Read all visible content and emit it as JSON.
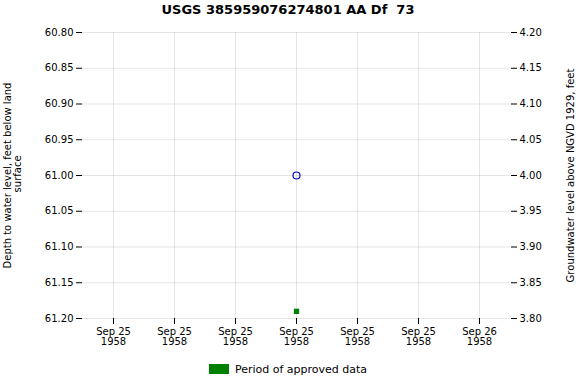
{
  "chart_data": {
    "type": "scatter",
    "title": "USGS 385959076274801 AA Df  73",
    "ylabel": "Depth to water level, feet below land\n surface",
    "y2label": "Groundwater level above NGVD 1929, feet",
    "categories": [
      "Sep 25\n1958",
      "Sep 25\n1958",
      "Sep 25\n1958",
      "Sep 25\n1958",
      "Sep 25\n1958",
      "Sep 25\n1958",
      "Sep 26\n1958"
    ],
    "series": [
      {
        "values": [
          null,
          null,
          null,
          61.0,
          null,
          null,
          null
        ],
        "color": "#0000cc",
        "marker": "circle"
      },
      {
        "name": "Period of approved data",
        "values": [
          null,
          null,
          null,
          61.19,
          null,
          null,
          null
        ],
        "color": "#008000",
        "marker": "square"
      }
    ],
    "ylim": [
      61.2,
      60.8
    ],
    "yticks": [
      {
        "value": 60.8,
        "label": "60.80"
      },
      {
        "value": 60.85,
        "label": "60.85"
      },
      {
        "value": 60.9,
        "label": "60.90"
      },
      {
        "value": 60.95,
        "label": "60.95"
      },
      {
        "value": 61.0,
        "label": "61.00"
      },
      {
        "value": 61.05,
        "label": "61.05"
      },
      {
        "value": 61.1,
        "label": "61.10"
      },
      {
        "value": 61.15,
        "label": "61.15"
      },
      {
        "value": 61.2,
        "label": "61.20"
      }
    ],
    "y2lim": [
      3.8,
      4.2
    ],
    "y2ticks": [
      {
        "value": 4.2,
        "label": "4.20"
      },
      {
        "value": 4.15,
        "label": "4.15"
      },
      {
        "value": 4.1,
        "label": "4.10"
      },
      {
        "value": 4.05,
        "label": "4.05"
      },
      {
        "value": 4.0,
        "label": "4.00"
      },
      {
        "value": 3.95,
        "label": "3.95"
      },
      {
        "value": 3.9,
        "label": "3.90"
      },
      {
        "value": 3.85,
        "label": "3.85"
      },
      {
        "value": 3.8,
        "label": "3.80"
      }
    ],
    "grid": true,
    "legend": "bottom"
  }
}
